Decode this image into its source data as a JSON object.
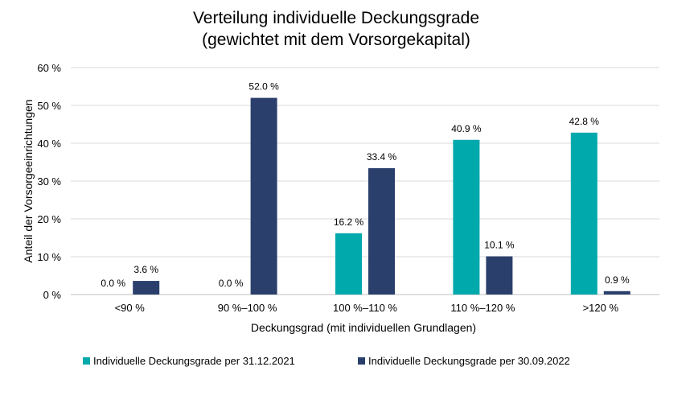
{
  "chart_data": {
    "type": "bar",
    "title_line1": "Verteilung individuelle Deckungsgrade",
    "title_line2": "(gewichtet mit dem Vorsorgekapital)",
    "xlabel": "Deckungsgrad (mit individuellen Grundlagen)",
    "ylabel": "Anteil der Vorsorgeeinrichtungen",
    "categories": [
      "<90 %",
      "90 %–100 %",
      "100 %–110 %",
      "110 %–120 %",
      ">120 %"
    ],
    "series": [
      {
        "name": "Individuelle Deckungsgrade per 31.12.2021",
        "color": "#00A9AC",
        "values": [
          0.0,
          0.0,
          16.2,
          40.9,
          42.8
        ],
        "labels": [
          "0.0 %",
          "0.0 %",
          "16.2 %",
          "40.9 %",
          "42.8 %"
        ]
      },
      {
        "name": "Individuelle Deckungsgrade per 30.09.2022",
        "color": "#2A3F6B",
        "values": [
          3.6,
          52.0,
          33.4,
          10.1,
          0.9
        ],
        "labels": [
          "3.6 %",
          "52.0 %",
          "33.4 %",
          "10.1 %",
          "0.9 %"
        ]
      }
    ],
    "yticks": [
      0,
      10,
      20,
      30,
      40,
      50,
      60
    ],
    "ytick_labels": [
      "0 %",
      "10 %",
      "20 %",
      "30 %",
      "40 %",
      "50 %",
      "60 %"
    ],
    "ylim": [
      0,
      60
    ],
    "grid": true,
    "legend_position": "bottom"
  }
}
